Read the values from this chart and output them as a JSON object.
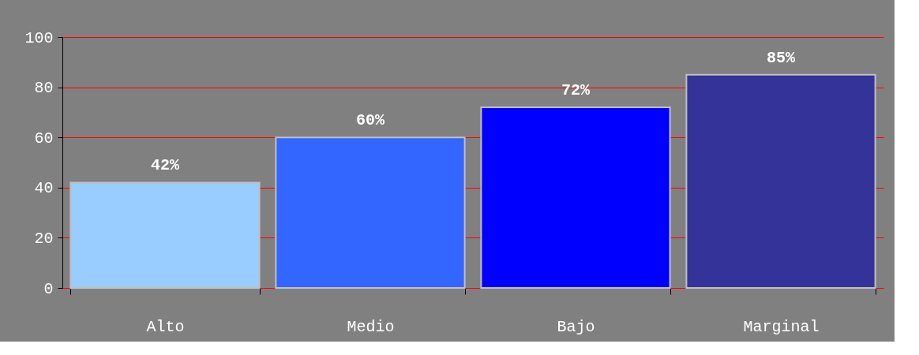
{
  "chart_data": {
    "type": "bar",
    "categories": [
      "Alto",
      "Medio",
      "Bajo",
      "Marginal"
    ],
    "values": [
      42,
      60,
      72,
      85
    ],
    "value_labels": [
      "42%",
      "60%",
      "72%",
      "85%"
    ],
    "colors": [
      "#99ccff",
      "#3366ff",
      "#0000ff",
      "#333399"
    ],
    "ylim": [
      0,
      100
    ],
    "yticks": [
      0,
      20,
      40,
      60,
      80,
      100
    ],
    "grid": "y",
    "legend": false
  }
}
